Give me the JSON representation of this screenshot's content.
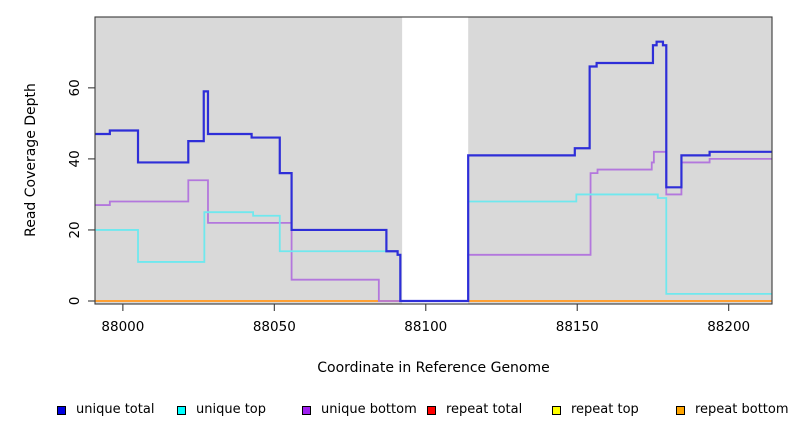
{
  "figure": {
    "xlabel": "Coordinate in Reference Genome",
    "ylabel": "Read Coverage Depth"
  },
  "chart_data": {
    "type": "line",
    "subtype": "step",
    "title": "",
    "xlabel": "Coordinate in Reference Genome",
    "ylabel": "Read Coverage Depth",
    "xlim": [
      87990.8,
      88214.3
    ],
    "ylim": [
      0,
      80
    ],
    "x_ticks": [
      88000,
      88050,
      88100,
      88150,
      88200
    ],
    "y_ticks": [
      0,
      20,
      40,
      60
    ],
    "grid": false,
    "plot_background": "#d9d9d9",
    "masked_region": {
      "x_start": 88092.2,
      "x_end": 88114,
      "color": "#ffffff"
    },
    "legend_position": "bottom",
    "legend": [
      {
        "label": "unique total",
        "color": "#0000e0"
      },
      {
        "label": "unique top",
        "color": "#00ffff"
      },
      {
        "label": "unique bottom",
        "color": "#a020f0"
      },
      {
        "label": "repeat total",
        "color": "#ff0000"
      },
      {
        "label": "repeat top",
        "color": "#ffff00"
      },
      {
        "label": "repeat bottom",
        "color": "#ffa500"
      }
    ],
    "series": [
      {
        "name": "repeat top",
        "color": "#ffff00",
        "width": 1.5,
        "points": [
          [
            87990.8,
            0
          ]
        ]
      },
      {
        "name": "repeat total",
        "color": "#dd2222",
        "width": 1.5,
        "points": [
          [
            87990.8,
            0
          ]
        ]
      },
      {
        "name": "repeat bottom",
        "color": "#ffa033",
        "width": 2,
        "points": [
          [
            87990.8,
            0
          ]
        ]
      },
      {
        "name": "unique bottom",
        "color": "#b377dd",
        "width": 1.8,
        "points": [
          [
            87990.8,
            27
          ],
          [
            87995.7,
            28
          ],
          [
            88021.6,
            34
          ],
          [
            88028.1,
            22
          ],
          [
            88055.7,
            6
          ],
          [
            88084.5,
            0
          ],
          [
            88114,
            13
          ],
          [
            88154.4,
            36
          ],
          [
            88156.7,
            37
          ],
          [
            88174.6,
            39
          ],
          [
            88175.3,
            42
          ],
          [
            88179.4,
            30
          ],
          [
            88184.4,
            39
          ],
          [
            88193.7,
            40
          ]
        ]
      },
      {
        "name": "unique top",
        "color": "#6fe8ee",
        "width": 1.8,
        "points": [
          [
            87990.8,
            20
          ],
          [
            88005,
            11
          ],
          [
            88026.9,
            25
          ],
          [
            88043,
            24
          ],
          [
            88051.8,
            14
          ],
          [
            88090.7,
            13
          ],
          [
            88091.6,
            0
          ],
          [
            88114,
            28
          ],
          [
            88149.7,
            30
          ],
          [
            88176.6,
            29
          ],
          [
            88179.4,
            2
          ]
        ]
      },
      {
        "name": "unique total",
        "color": "#2e2ed8",
        "width": 2.2,
        "points": [
          [
            87990.8,
            47
          ],
          [
            87995.7,
            48
          ],
          [
            88005,
            39
          ],
          [
            88021.6,
            45
          ],
          [
            88026.7,
            59
          ],
          [
            88028.1,
            47
          ],
          [
            88042.5,
            46
          ],
          [
            88051.8,
            36
          ],
          [
            88055.7,
            20
          ],
          [
            88087,
            14
          ],
          [
            88090.7,
            13
          ],
          [
            88091.6,
            0
          ],
          [
            88114,
            41
          ],
          [
            88149.2,
            43
          ],
          [
            88154.1,
            66
          ],
          [
            88156.4,
            67
          ],
          [
            88175,
            72
          ],
          [
            88176.2,
            73
          ],
          [
            88178.3,
            72
          ],
          [
            88179.4,
            32
          ],
          [
            88184.4,
            41
          ],
          [
            88193.7,
            42
          ]
        ]
      }
    ]
  }
}
